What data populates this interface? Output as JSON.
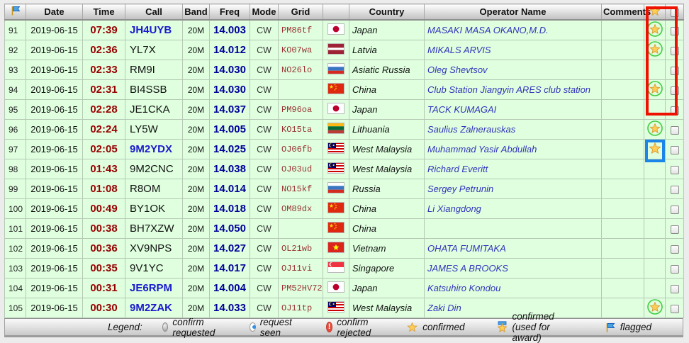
{
  "header": {
    "columns": {
      "date": "Date",
      "time": "Time",
      "call": "Call",
      "band": "Band",
      "freq": "Freq",
      "mode": "Mode",
      "grid": "Grid",
      "country": "Country",
      "operator": "Operator Name",
      "comments": "Comments"
    },
    "flag_header_icon": "blue-flag-icon",
    "star_header_icon": "star-icon",
    "checkbox_header": "select-all-checkbox"
  },
  "rows": [
    {
      "num": "91",
      "date": "2019-06-15",
      "time": "07:39",
      "call": "JH4UYB",
      "call_highlight": true,
      "band": "20M",
      "freq": "14.003",
      "mode": "CW",
      "grid": "PM86tf",
      "flag": "japan",
      "country": "Japan",
      "operator": "MASAKI MASA OKANO,M.D.",
      "comments": "",
      "star": "award"
    },
    {
      "num": "92",
      "date": "2019-06-15",
      "time": "02:36",
      "call": "YL7X",
      "call_highlight": false,
      "band": "20M",
      "freq": "14.012",
      "mode": "CW",
      "grid": "KO07wa",
      "flag": "latvia",
      "country": "Latvia",
      "operator": "MIKALS ARVIS",
      "comments": "",
      "star": "award"
    },
    {
      "num": "93",
      "date": "2019-06-15",
      "time": "02:33",
      "call": "RM9I",
      "call_highlight": false,
      "band": "20M",
      "freq": "14.030",
      "mode": "CW",
      "grid": "NO26lo",
      "flag": "russia",
      "country": "Asiatic Russia",
      "operator": "Oleg Shevtsov",
      "comments": "",
      "star": "none"
    },
    {
      "num": "94",
      "date": "2019-06-15",
      "time": "02:31",
      "call": "BI4SSB",
      "call_highlight": false,
      "band": "20M",
      "freq": "14.030",
      "mode": "CW",
      "grid": "",
      "flag": "china",
      "country": "China",
      "operator": "Club Station Jiangyin ARES club station",
      "comments": "",
      "star": "award"
    },
    {
      "num": "95",
      "date": "2019-06-15",
      "time": "02:28",
      "call": "JE1CKA",
      "call_highlight": false,
      "band": "20M",
      "freq": "14.037",
      "mode": "CW",
      "grid": "PM96oa",
      "flag": "japan",
      "country": "Japan",
      "operator": "TACK KUMAGAI",
      "comments": "",
      "star": "none"
    },
    {
      "num": "96",
      "date": "2019-06-15",
      "time": "02:24",
      "call": "LY5W",
      "call_highlight": false,
      "band": "20M",
      "freq": "14.005",
      "mode": "CW",
      "grid": "KO15ta",
      "flag": "lithuania",
      "country": "Lithuania",
      "operator": "Saulius Zalnerauskas",
      "comments": "",
      "star": "award"
    },
    {
      "num": "97",
      "date": "2019-06-15",
      "time": "02:05",
      "call": "9M2YDX",
      "call_highlight": true,
      "band": "20M",
      "freq": "14.025",
      "mode": "CW",
      "grid": "OJ06fb",
      "flag": "malaysia",
      "country": "West Malaysia",
      "operator": "Muhammad Yasir Abdullah",
      "comments": "",
      "star": "confirmed"
    },
    {
      "num": "98",
      "date": "2019-06-15",
      "time": "01:43",
      "call": "9M2CNC",
      "call_highlight": false,
      "band": "20M",
      "freq": "14.038",
      "mode": "CW",
      "grid": "OJ03ud",
      "flag": "malaysia",
      "country": "West Malaysia",
      "operator": "Richard Everitt",
      "comments": "",
      "star": "none"
    },
    {
      "num": "99",
      "date": "2019-06-15",
      "time": "01:08",
      "call": "R8OM",
      "call_highlight": false,
      "band": "20M",
      "freq": "14.014",
      "mode": "CW",
      "grid": "NO15kf",
      "flag": "russia",
      "country": "Russia",
      "operator": "Sergey Petrunin",
      "comments": "",
      "star": "none"
    },
    {
      "num": "100",
      "date": "2019-06-15",
      "time": "00:49",
      "call": "BY1OK",
      "call_highlight": false,
      "band": "20M",
      "freq": "14.018",
      "mode": "CW",
      "grid": "OM89dx",
      "flag": "china",
      "country": "China",
      "operator": "Li Xiangdong",
      "comments": "",
      "star": "none"
    },
    {
      "num": "101",
      "date": "2019-06-15",
      "time": "00:38",
      "call": "BH7XZW",
      "call_highlight": false,
      "band": "20M",
      "freq": "14.050",
      "mode": "CW",
      "grid": "",
      "flag": "china",
      "country": "China",
      "operator": "",
      "comments": "",
      "star": "none"
    },
    {
      "num": "102",
      "date": "2019-06-15",
      "time": "00:36",
      "call": "XV9NPS",
      "call_highlight": false,
      "band": "20M",
      "freq": "14.027",
      "mode": "CW",
      "grid": "OL21wb",
      "flag": "vietnam",
      "country": "Vietnam",
      "operator": "OHATA FUMITAKA",
      "comments": "",
      "star": "none"
    },
    {
      "num": "103",
      "date": "2019-06-15",
      "time": "00:35",
      "call": "9V1YC",
      "call_highlight": false,
      "band": "20M",
      "freq": "14.017",
      "mode": "CW",
      "grid": "OJ11vi",
      "flag": "singapore",
      "country": "Singapore",
      "operator": "JAMES A BROOKS",
      "comments": "",
      "star": "none"
    },
    {
      "num": "104",
      "date": "2019-06-15",
      "time": "00:31",
      "call": "JE6RPM",
      "call_highlight": true,
      "band": "20M",
      "freq": "14.004",
      "mode": "CW",
      "grid": "PM52HV72",
      "flag": "japan",
      "country": "Japan",
      "operator": "Katsuhiro Kondou",
      "comments": "",
      "star": "none"
    },
    {
      "num": "105",
      "date": "2019-06-15",
      "time": "00:30",
      "call": "9M2ZAK",
      "call_highlight": true,
      "band": "20M",
      "freq": "14.033",
      "mode": "CW",
      "grid": "OJ11tp",
      "flag": "malaysia",
      "country": "West Malaysia",
      "operator": "Zaki Din",
      "comments": "",
      "star": "award"
    }
  ],
  "legend": {
    "label": "Legend:",
    "items": [
      {
        "icon": "circle-gray",
        "label": "confirm requested"
      },
      {
        "icon": "circle-blue-dot",
        "label": "request seen"
      },
      {
        "icon": "exclamation-red",
        "label": "confirm rejected"
      },
      {
        "icon": "star",
        "label": "confirmed"
      },
      {
        "icon": "star-award",
        "label": "confirmed (used for award)"
      },
      {
        "icon": "flag-blue",
        "label": "flagged"
      }
    ]
  },
  "annotations": {
    "red_box_color": "#ee1100",
    "blue_box_color": "#1c86e8"
  },
  "colors": {
    "row_bg": "#dfffdf",
    "time": "#990000",
    "freq": "#000099",
    "call_highlight": "#1a1acc",
    "operator": "#3333bb",
    "grid": "#993333",
    "star_gold": "#ffce54",
    "award_ring_green": "#3fcc3f"
  }
}
